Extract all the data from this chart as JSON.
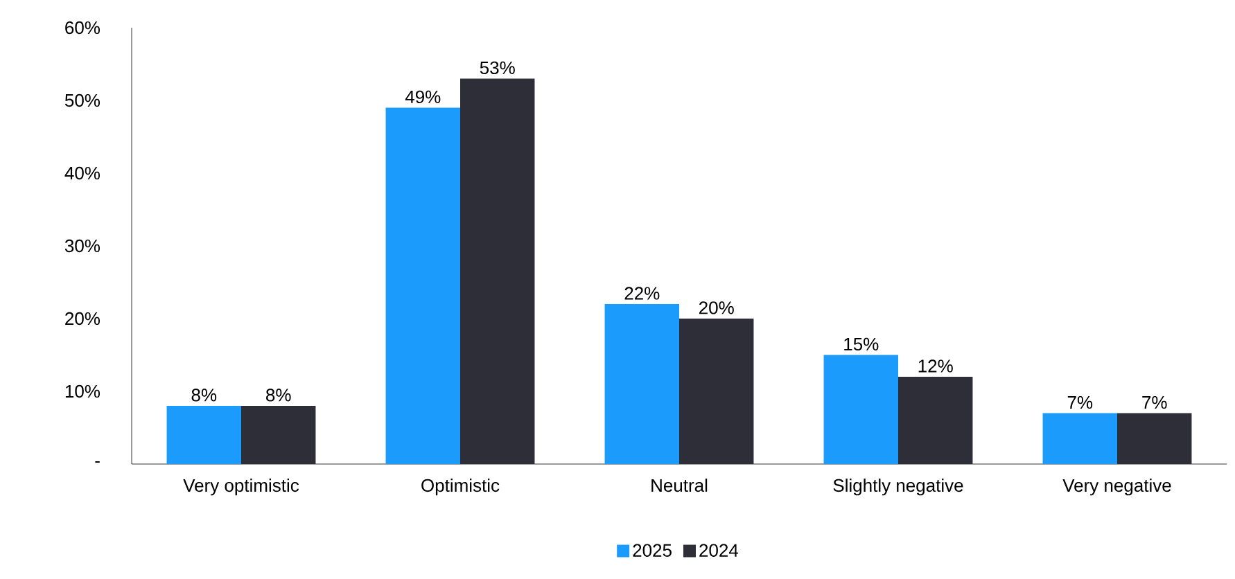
{
  "chart_data": {
    "type": "bar",
    "categories": [
      "Very optimistic",
      "Optimistic",
      "Neutral",
      "Slightly negative",
      "Very negative"
    ],
    "series": [
      {
        "name": "2025",
        "color": "#1b9cfc",
        "values": [
          8,
          49,
          22,
          15,
          7
        ],
        "value_labels": [
          "8%",
          "49%",
          "22%",
          "15%",
          "7%"
        ]
      },
      {
        "name": "2024",
        "color": "#2e2e38",
        "values": [
          8,
          53,
          20,
          12,
          7
        ],
        "value_labels": [
          "8%",
          "53%",
          "20%",
          "12%",
          "7%"
        ]
      }
    ],
    "ylim": [
      0,
      60
    ],
    "yticks": [
      {
        "value": 0,
        "label": "-"
      },
      {
        "value": 10,
        "label": "10%"
      },
      {
        "value": 20,
        "label": "20%"
      },
      {
        "value": 30,
        "label": "30%"
      },
      {
        "value": 40,
        "label": "40%"
      },
      {
        "value": 50,
        "label": "50%"
      },
      {
        "value": 60,
        "label": "60%"
      }
    ],
    "grid": false,
    "legend": "bottom"
  }
}
